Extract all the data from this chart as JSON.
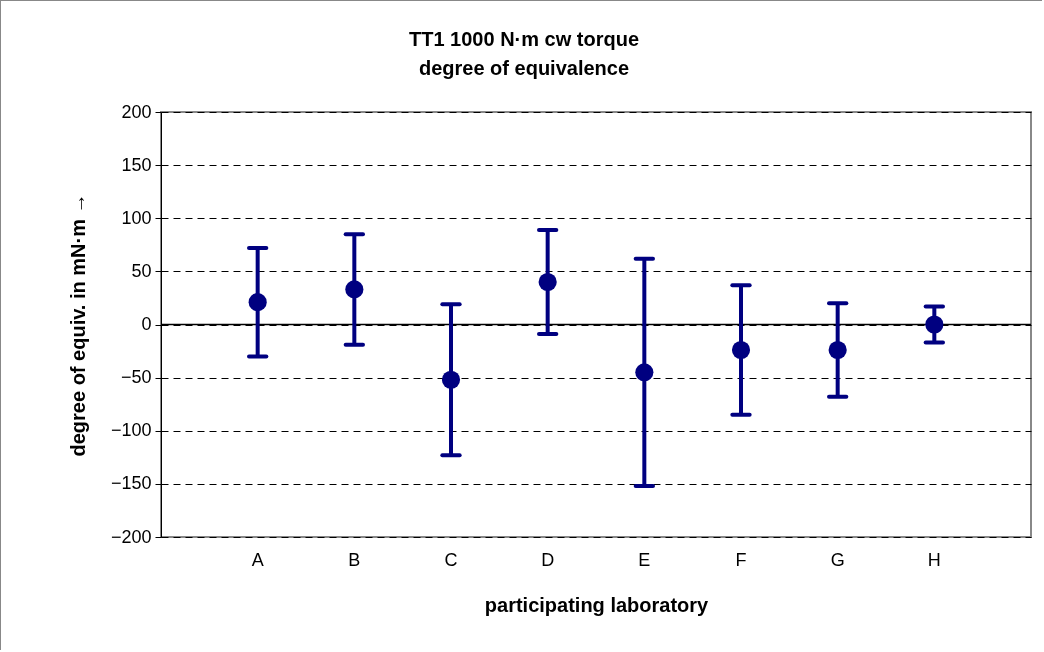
{
  "chart_data": {
    "type": "scatter",
    "title": [
      "TT1 1000 N·m cw torque",
      "degree of equivalence"
    ],
    "xlabel": "participating laboratory",
    "ylabel": "degree of equiv. in mN·m →",
    "categories": [
      "A",
      "B",
      "C",
      "D",
      "E",
      "F",
      "G",
      "H"
    ],
    "values": [
      21,
      33,
      -52,
      40,
      -45,
      -24,
      -24,
      0
    ],
    "errors": [
      51,
      52,
      71,
      49,
      107,
      61,
      44,
      17
    ],
    "color": "#000080",
    "marker": "circle",
    "ylim": [
      -200,
      200
    ],
    "yticks": [
      -200,
      -150,
      -100,
      -50,
      0,
      50,
      100,
      150,
      200
    ],
    "grid": "y",
    "ref_lines": [
      {
        "axis": "y",
        "value": 0,
        "color": "#000000",
        "line_style": "solid"
      }
    ]
  }
}
